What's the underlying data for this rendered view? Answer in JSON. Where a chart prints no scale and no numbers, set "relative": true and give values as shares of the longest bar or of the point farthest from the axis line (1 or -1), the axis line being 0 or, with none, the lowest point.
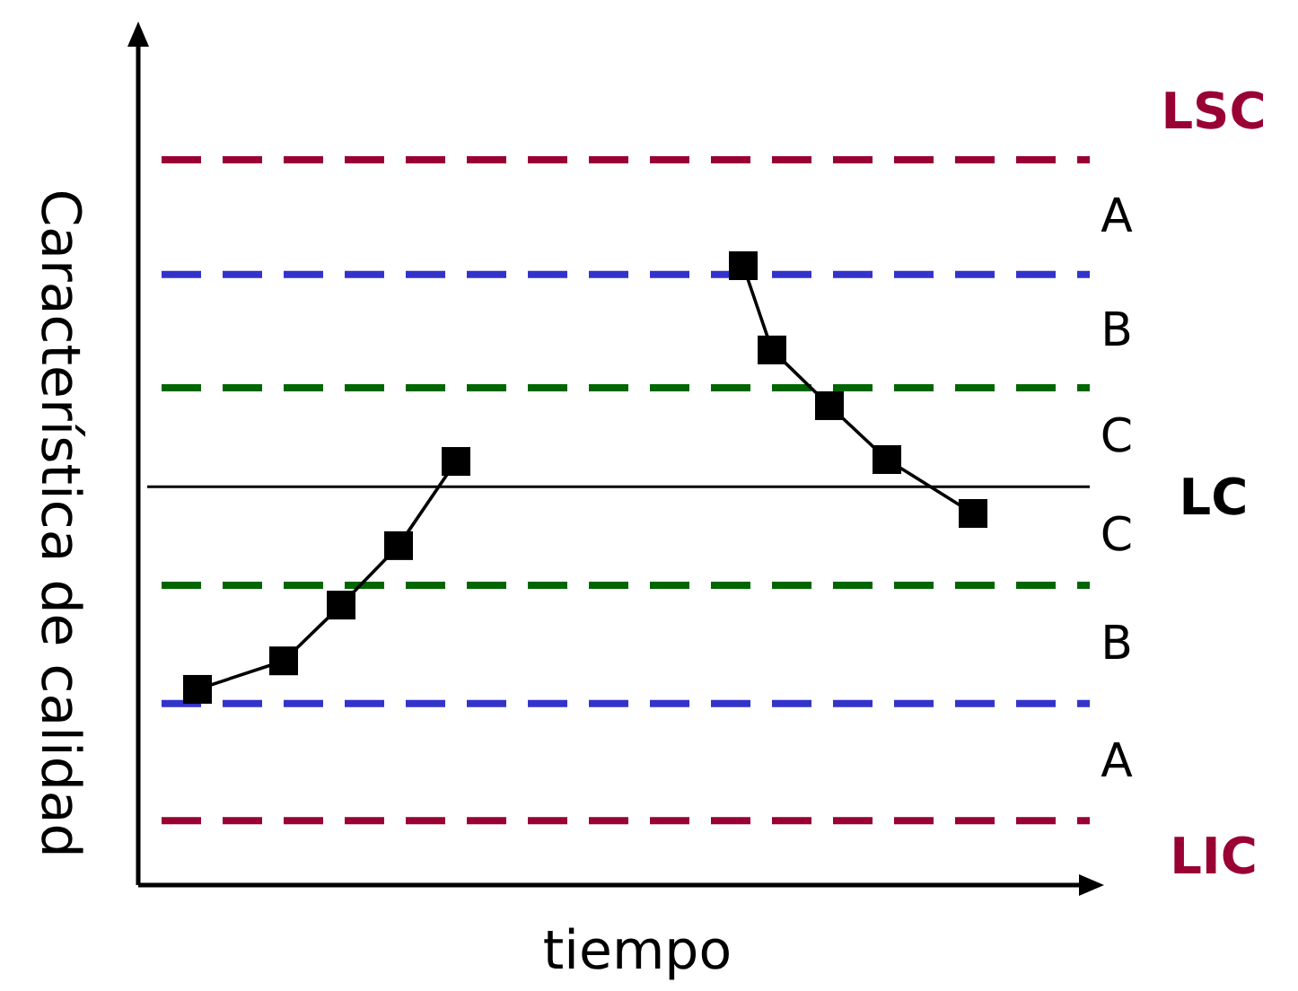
{
  "chart_data": {
    "type": "line",
    "relative": true,
    "xlabel": "tiempo",
    "ylabel": "Característica de calidad",
    "marker": "square",
    "line_style": "solid",
    "categories": [
      null,
      null,
      null,
      null,
      null,
      null,
      null,
      null,
      null,
      null,
      null,
      null,
      null,
      null,
      null,
      null,
      null,
      null,
      null,
      null,
      null,
      null,
      null,
      null,
      null,
      null,
      null,
      null,
      null,
      null
    ],
    "series": [
      {
        "color": "#000000",
        "values": [
          0.316,
          null,
          null,
          0.362,
          null,
          0.452,
          null,
          0.548,
          null,
          0.684,
          null,
          null,
          null,
          null,
          null,
          null,
          null,
          null,
          null,
          null,
          null,
          null,
          null,
          null,
          null,
          null,
          null,
          null,
          null,
          null
        ]
      },
      {
        "color": "#000000",
        "values": [
          null,
          null,
          null,
          null,
          null,
          null,
          null,
          null,
          null,
          null,
          null,
          null,
          null,
          null,
          null,
          null,
          null,
          null,
          null,
          1,
          0.864,
          null,
          0.774,
          null,
          0.687,
          null,
          null,
          0.6,
          null,
          null
        ]
      }
    ],
    "ref_lines": [
      {
        "axis": "y",
        "value": 1.171,
        "label": "LSC",
        "color": "#990033",
        "line_style": "dashed"
      },
      {
        "axis": "y",
        "value": 0.986,
        "color": "#3333cc",
        "line_style": "dashed"
      },
      {
        "axis": "y",
        "value": 0.803,
        "color": "#006600",
        "line_style": "dashed"
      },
      {
        "axis": "y",
        "value": 0.643,
        "label": "LC",
        "color": "#000000",
        "line_style": "solid"
      },
      {
        "axis": "y",
        "value": 0.484,
        "color": "#006600",
        "line_style": "dashed"
      },
      {
        "axis": "y",
        "value": 0.293,
        "color": "#3333cc",
        "line_style": "dashed"
      },
      {
        "axis": "y",
        "value": 0.104,
        "label": "LIC",
        "color": "#990033",
        "line_style": "dashed"
      }
    ],
    "annotations": [
      "A",
      "B",
      "C",
      "C",
      "B",
      "A"
    ]
  }
}
